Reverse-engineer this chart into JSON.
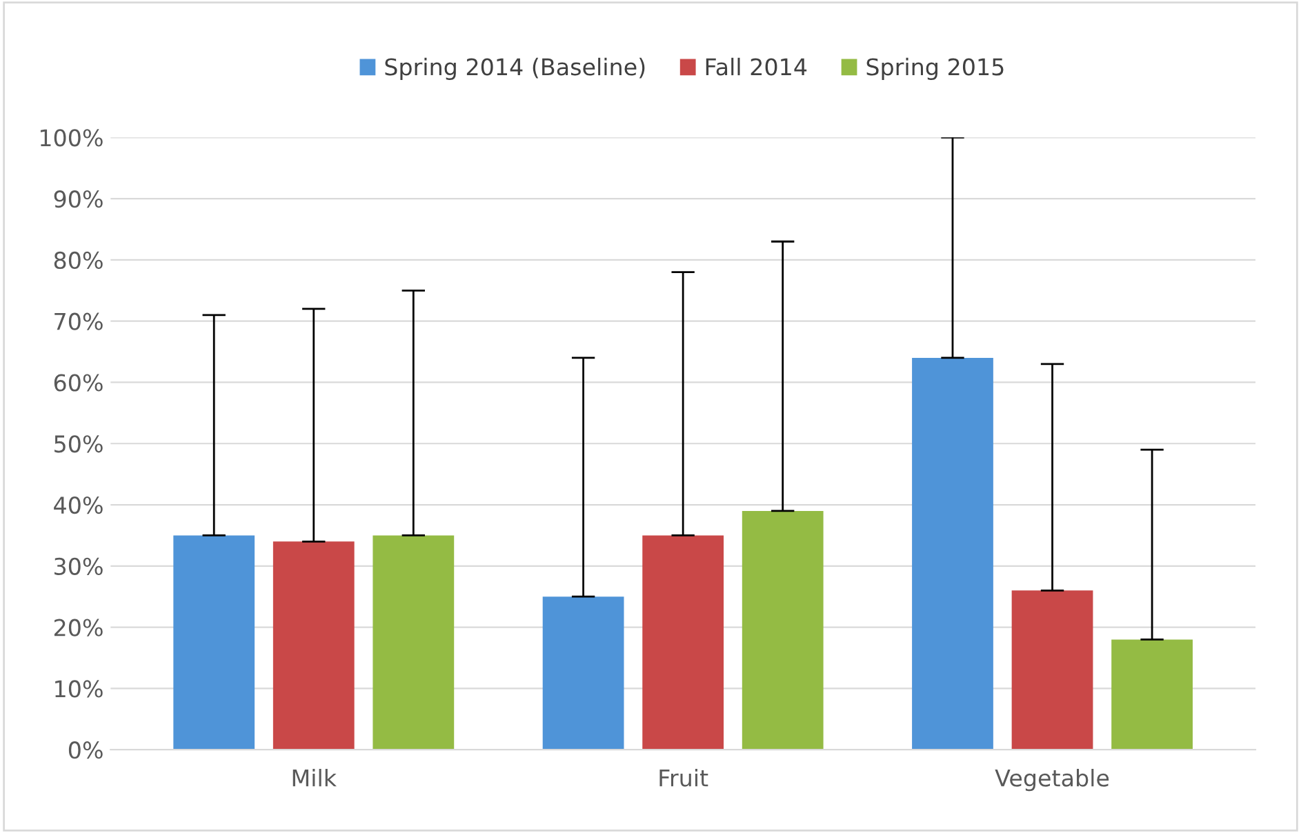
{
  "chart_data": {
    "type": "bar",
    "categories": [
      "Milk",
      "Fruit",
      "Vegetable"
    ],
    "series": [
      {
        "name": "Spring 2014 (Baseline)",
        "color": "#4f94d8",
        "values": [
          35,
          25,
          64
        ],
        "errors": [
          [
            35,
            71
          ],
          [
            25,
            64
          ],
          [
            64,
            100
          ]
        ]
      },
      {
        "name": "Fall 2014",
        "color": "#c94848",
        "values": [
          34,
          35,
          26
        ],
        "errors": [
          [
            34,
            72
          ],
          [
            35,
            78
          ],
          [
            26,
            63
          ]
        ]
      },
      {
        "name": "Spring 2015",
        "color": "#94bb44",
        "values": [
          35,
          39,
          18
        ],
        "errors": [
          [
            35,
            75
          ],
          [
            39,
            83
          ],
          [
            18,
            49
          ]
        ]
      }
    ],
    "ylim": [
      0,
      100
    ],
    "yticks": [
      {
        "value": 0,
        "label": "0%"
      },
      {
        "value": 10,
        "label": "10%"
      },
      {
        "value": 20,
        "label": "20%"
      },
      {
        "value": 30,
        "label": "30%"
      },
      {
        "value": 40,
        "label": "40%"
      },
      {
        "value": 50,
        "label": "50%"
      },
      {
        "value": 60,
        "label": "60%"
      },
      {
        "value": 70,
        "label": "70%"
      },
      {
        "value": 80,
        "label": "80%"
      },
      {
        "value": 90,
        "label": "90%"
      },
      {
        "value": 100,
        "label": "100%"
      }
    ],
    "grid": "y",
    "legend": "top"
  }
}
